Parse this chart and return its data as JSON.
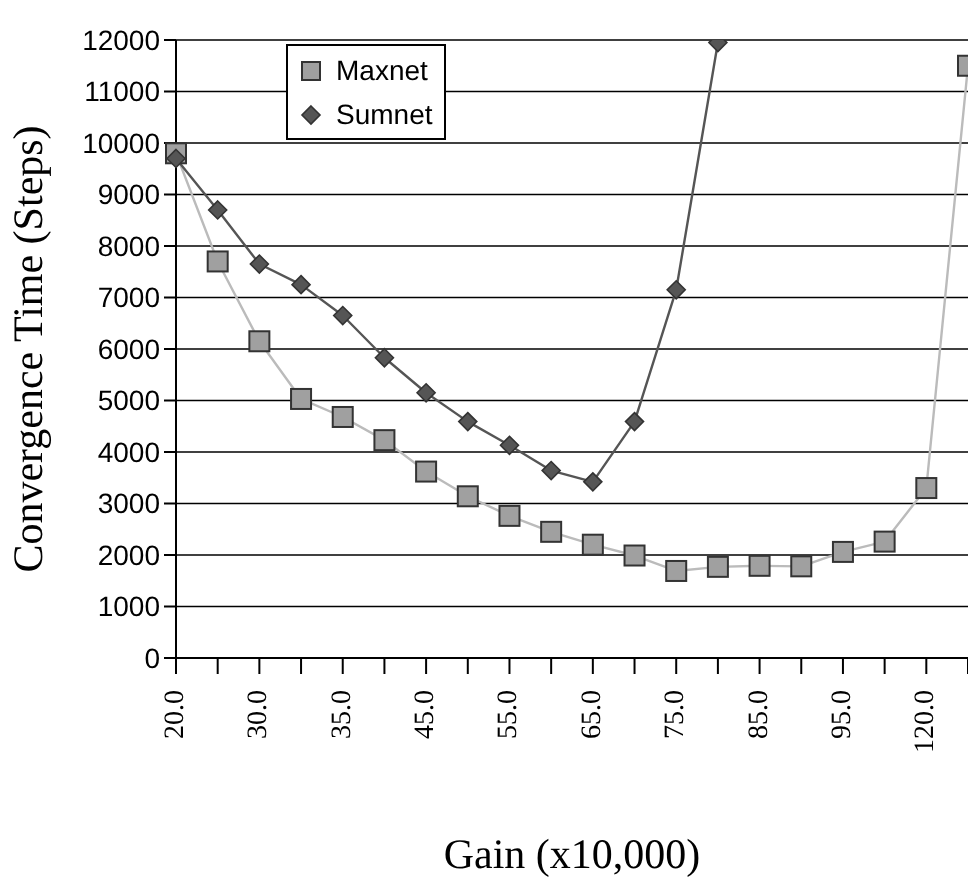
{
  "chart_data": {
    "type": "line",
    "xlabel": "Gain (x10,000)",
    "ylabel": "Convergence Time (Steps)",
    "categories": [
      "20.0",
      null,
      "30.0",
      null,
      "35.0",
      null,
      "45.0",
      null,
      "55.0",
      null,
      "65.0",
      null,
      "75.0",
      null,
      "85.0",
      null,
      "95.0",
      null,
      "120.0",
      null
    ],
    "series": [
      {
        "name": "Maxnet",
        "color": "#a0a0a0",
        "marker": "square",
        "values": [
          9800,
          7700,
          6150,
          5030,
          4680,
          4230,
          3620,
          3140,
          2760,
          2450,
          2200,
          1990,
          1690,
          1770,
          1790,
          1780,
          2060,
          2260,
          3300,
          11500
        ]
      },
      {
        "name": "Sumnet",
        "color": "#555555",
        "marker": "diamond",
        "values": [
          9700,
          8700,
          7650,
          7250,
          6650,
          5830,
          5150,
          4590,
          4130,
          3640,
          3420,
          4590,
          7150,
          11950,
          null,
          null,
          null,
          null,
          null,
          null
        ]
      }
    ],
    "ylim": [
      0,
      12000
    ],
    "yticks": [
      0,
      1000,
      2000,
      3000,
      4000,
      5000,
      6000,
      7000,
      8000,
      9000,
      10000,
      11000,
      12000
    ],
    "grid": "y",
    "legend": "top left"
  }
}
